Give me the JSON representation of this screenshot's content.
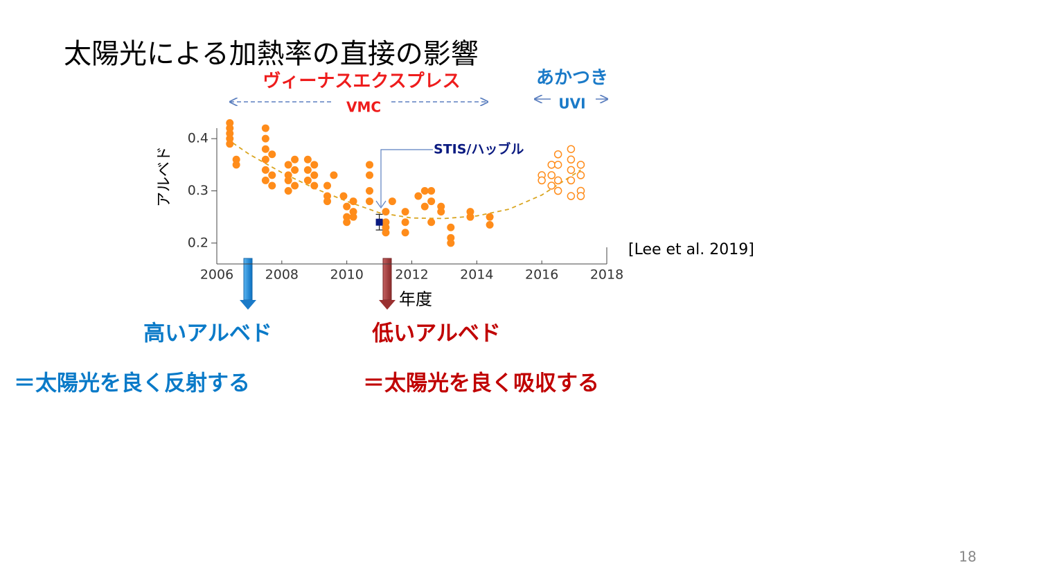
{
  "title": "太陽光による加熱率の直接の影響",
  "chart_data": {
    "type": "scatter",
    "y_label": "アルベド",
    "x_label": "年度",
    "annotations": [
      "ヴィーナスエクスプレス",
      "あかつき"
    ],
    "xlim": [
      2006,
      2018
    ],
    "xticks": [
      2006,
      2008,
      2010,
      2012,
      2014,
      2016,
      2018
    ],
    "ylim": [
      0.16,
      0.44
    ],
    "yticks": [
      0.2,
      0.3,
      0.4
    ],
    "series": [
      {
        "name": "VMC",
        "color": "#ff8c1a",
        "marker": "filled-circle",
        "x": [
          2006.4,
          2006.4,
          2006.4,
          2006.4,
          2006.4,
          2006.6,
          2006.6,
          2007.5,
          2007.5,
          2007.5,
          2007.5,
          2007.5,
          2007.5,
          2007.7,
          2007.7,
          2007.7,
          2008.2,
          2008.2,
          2008.2,
          2008.2,
          2008.4,
          2008.4,
          2008.4,
          2008.8,
          2008.8,
          2008.8,
          2009.0,
          2009.0,
          2009.0,
          2009.4,
          2009.4,
          2009.4,
          2009.6,
          2009.9,
          2010.0,
          2010.0,
          2010.0,
          2010.2,
          2010.2,
          2010.2,
          2010.7,
          2010.7,
          2010.7,
          2010.7,
          2011.2,
          2011.2,
          2011.2,
          2011.2,
          2011.4,
          2011.8,
          2011.8,
          2011.8,
          2012.2,
          2012.4,
          2012.4,
          2012.6,
          2012.6,
          2012.6,
          2012.9,
          2012.9,
          2013.2,
          2013.2,
          2013.2,
          2013.8,
          2013.8,
          2014.4,
          2014.4
        ],
        "values": [
          0.42,
          0.41,
          0.4,
          0.39,
          0.43,
          0.35,
          0.36,
          0.42,
          0.4,
          0.38,
          0.36,
          0.34,
          0.32,
          0.37,
          0.33,
          0.31,
          0.35,
          0.33,
          0.3,
          0.32,
          0.34,
          0.31,
          0.36,
          0.36,
          0.34,
          0.32,
          0.35,
          0.33,
          0.31,
          0.31,
          0.29,
          0.28,
          0.33,
          0.29,
          0.27,
          0.25,
          0.24,
          0.26,
          0.28,
          0.25,
          0.35,
          0.33,
          0.3,
          0.28,
          0.26,
          0.24,
          0.23,
          0.22,
          0.28,
          0.26,
          0.24,
          0.22,
          0.29,
          0.3,
          0.27,
          0.3,
          0.28,
          0.24,
          0.27,
          0.26,
          0.23,
          0.21,
          0.2,
          0.26,
          0.25,
          0.25,
          0.235
        ]
      },
      {
        "name": "UVI",
        "color": "#ff8c1a",
        "marker": "open-circle",
        "x": [
          2016.0,
          2016.0,
          2016.3,
          2016.3,
          2016.3,
          2016.5,
          2016.5,
          2016.5,
          2016.5,
          2016.9,
          2016.9,
          2016.9,
          2016.9,
          2016.9,
          2017.2,
          2017.2,
          2017.2,
          2017.2
        ],
        "values": [
          0.33,
          0.32,
          0.35,
          0.33,
          0.31,
          0.37,
          0.35,
          0.32,
          0.3,
          0.38,
          0.36,
          0.34,
          0.32,
          0.29,
          0.35,
          0.33,
          0.3,
          0.29
        ]
      },
      {
        "name": "STIS/ハッブル",
        "color": "#0a1a80",
        "marker": "square",
        "x": [
          2011.0
        ],
        "values": [
          0.24
        ],
        "errors": [
          0.015
        ]
      },
      {
        "color": "#d9a520",
        "marker": "dashed-line",
        "x": [
          2006.3,
          2007,
          2008,
          2009,
          2010,
          2011,
          2012,
          2013,
          2014,
          2015,
          2016,
          2017.2
        ],
        "values": [
          0.4,
          0.37,
          0.335,
          0.305,
          0.28,
          0.258,
          0.248,
          0.247,
          0.252,
          0.265,
          0.292,
          0.34
        ]
      }
    ]
  },
  "citation": "[Lee et al. 2019]",
  "notes": [
    {
      "label": "高いアルベド",
      "detail": "＝太陽光を良く反射する",
      "color": "#0a7ac8"
    },
    {
      "label": "低いアルベド",
      "detail": "＝太陽光を良く吸収する",
      "color": "#c00000"
    }
  ],
  "page_number": "18"
}
